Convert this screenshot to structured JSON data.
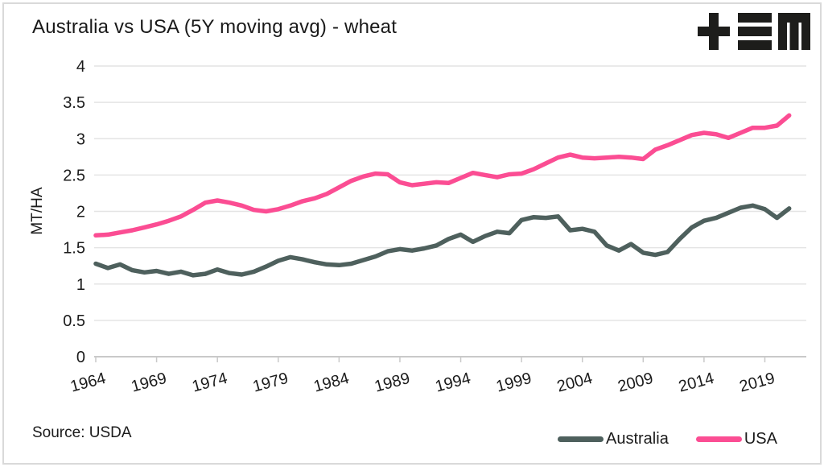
{
  "header": {
    "title": "Australia vs USA (5Y moving avg) - wheat"
  },
  "logo": {
    "icon": "tem-logo"
  },
  "footer": {
    "source": "Source: USDA"
  },
  "chart_data": {
    "type": "line",
    "title": "Australia vs USA (5Y moving avg) - wheat",
    "xlabel": "",
    "ylabel": "MT/HA",
    "ylim": [
      0,
      4
    ],
    "xlim": [
      1964,
      2021
    ],
    "grid": "horizontal",
    "legend_position": "bottom-right",
    "y_ticks": [
      "0",
      "0.5",
      "1",
      "1.5",
      "2",
      "2.5",
      "3",
      "3.5",
      "4"
    ],
    "x_ticks": [
      1964,
      1969,
      1974,
      1979,
      1984,
      1989,
      1994,
      1999,
      2004,
      2009,
      2014,
      2019
    ],
    "x": [
      1964,
      1965,
      1966,
      1967,
      1968,
      1969,
      1970,
      1971,
      1972,
      1973,
      1974,
      1975,
      1976,
      1977,
      1978,
      1979,
      1980,
      1981,
      1982,
      1983,
      1984,
      1985,
      1986,
      1987,
      1988,
      1989,
      1990,
      1991,
      1992,
      1993,
      1994,
      1995,
      1996,
      1997,
      1998,
      1999,
      2000,
      2001,
      2002,
      2003,
      2004,
      2005,
      2006,
      2007,
      2008,
      2009,
      2010,
      2011,
      2012,
      2013,
      2014,
      2015,
      2016,
      2017,
      2018,
      2019,
      2020,
      2021
    ],
    "series": [
      {
        "name": "Australia",
        "color": "#4E605D",
        "values": [
          1.28,
          1.22,
          1.27,
          1.19,
          1.16,
          1.18,
          1.14,
          1.17,
          1.12,
          1.14,
          1.2,
          1.15,
          1.13,
          1.17,
          1.24,
          1.32,
          1.37,
          1.34,
          1.3,
          1.27,
          1.26,
          1.28,
          1.33,
          1.38,
          1.45,
          1.48,
          1.46,
          1.49,
          1.53,
          1.62,
          1.68,
          1.58,
          1.66,
          1.72,
          1.7,
          1.88,
          1.92,
          1.91,
          1.93,
          1.74,
          1.76,
          1.72,
          1.53,
          1.46,
          1.55,
          1.43,
          1.4,
          1.44,
          1.62,
          1.78,
          1.87,
          1.91,
          1.98,
          2.05,
          2.08,
          2.03,
          1.91,
          2.04
        ]
      },
      {
        "name": "USA",
        "color": "#FB4D93",
        "values": [
          1.67,
          1.68,
          1.71,
          1.74,
          1.78,
          1.82,
          1.87,
          1.93,
          2.02,
          2.12,
          2.15,
          2.12,
          2.08,
          2.02,
          2.0,
          2.03,
          2.08,
          2.14,
          2.18,
          2.24,
          2.33,
          2.42,
          2.48,
          2.52,
          2.51,
          2.4,
          2.36,
          2.38,
          2.4,
          2.39,
          2.46,
          2.53,
          2.5,
          2.47,
          2.51,
          2.52,
          2.58,
          2.66,
          2.74,
          2.78,
          2.74,
          2.73,
          2.74,
          2.75,
          2.74,
          2.72,
          2.85,
          2.91,
          2.98,
          3.05,
          3.08,
          3.06,
          3.01,
          3.08,
          3.15,
          3.15,
          3.18,
          3.32
        ]
      }
    ]
  }
}
